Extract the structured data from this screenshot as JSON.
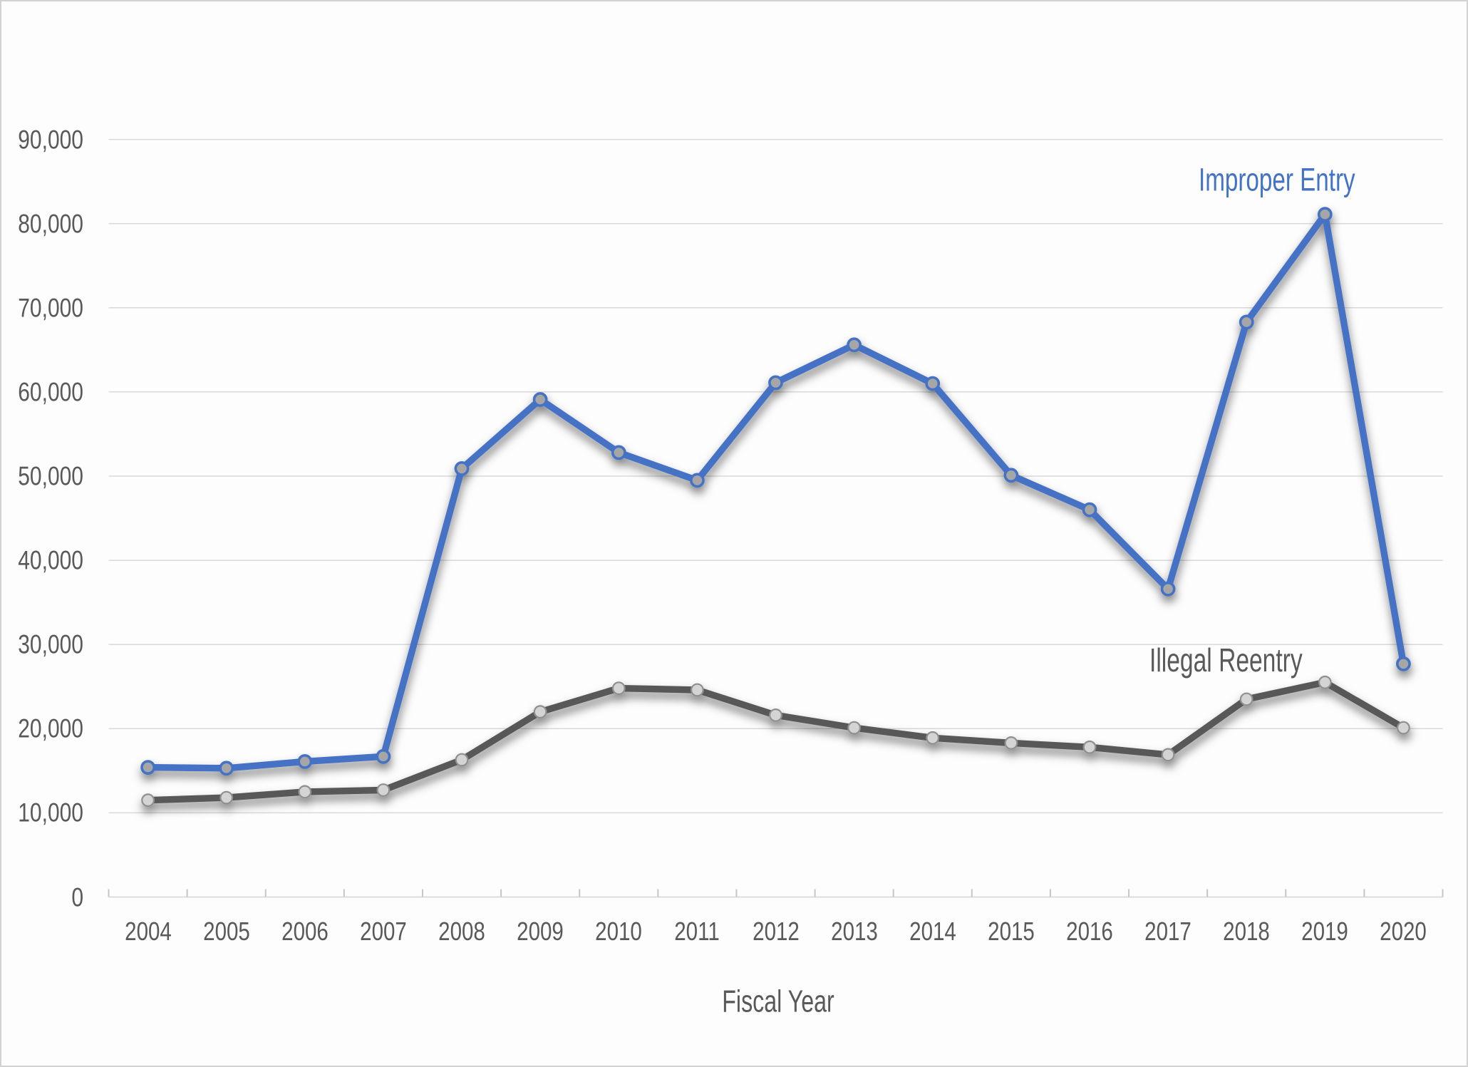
{
  "chart_data": {
    "type": "line",
    "title": "",
    "xlabel": "Fiscal Year",
    "ylabel": "",
    "categories": [
      "2004",
      "2005",
      "2006",
      "2007",
      "2008",
      "2009",
      "2010",
      "2011",
      "2012",
      "2013",
      "2014",
      "2015",
      "2016",
      "2017",
      "2018",
      "2019",
      "2020"
    ],
    "series": [
      {
        "name": "Improper Entry",
        "color": "#4472c4",
        "marker_fill": "#a6a6a6",
        "marker_stroke": "#4472c4",
        "values": [
          15400,
          15300,
          16100,
          16700,
          50900,
          59100,
          52800,
          49500,
          61100,
          65600,
          61000,
          50100,
          46000,
          36600,
          68300,
          81100,
          27700
        ]
      },
      {
        "name": "Illegal Reentry",
        "color": "#595959",
        "marker_fill": "#d4d4d4",
        "marker_stroke": "#8f8f8f",
        "values": [
          11500,
          11800,
          12500,
          12700,
          16300,
          22000,
          24800,
          24600,
          21600,
          20100,
          18900,
          18300,
          17800,
          16900,
          23500,
          25500,
          20100
        ]
      }
    ],
    "ylim": [
      0,
      90000
    ],
    "y_ticks": [
      0,
      10000,
      20000,
      30000,
      40000,
      50000,
      60000,
      70000,
      80000,
      90000
    ],
    "grid": "horizontal",
    "legend": "none",
    "gridline_color": "#d9d9d9",
    "tick_color": "#c6c6c6",
    "axis_text_color": "#595959"
  }
}
